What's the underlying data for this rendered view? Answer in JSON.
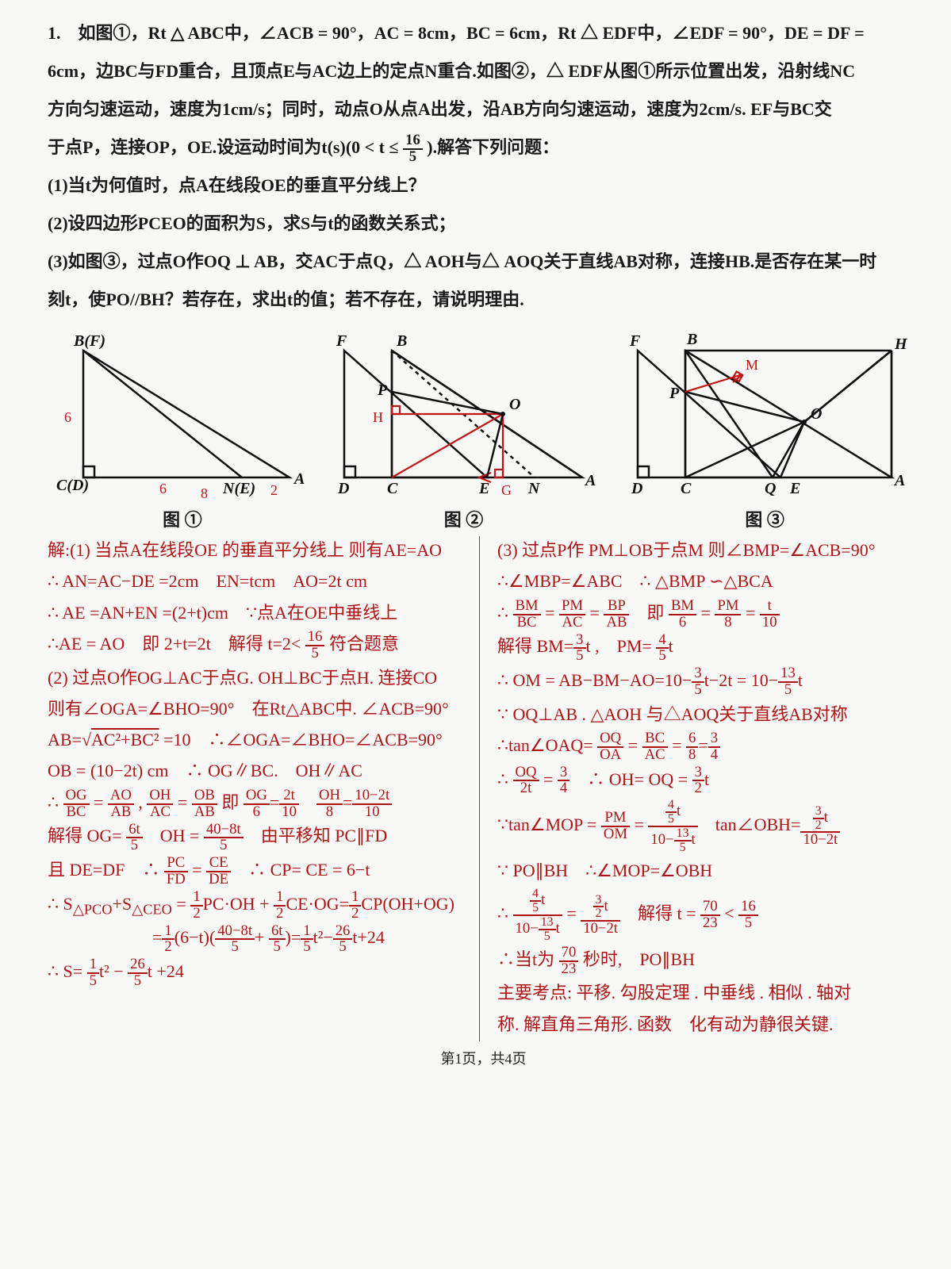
{
  "problem": {
    "line1": "1.　如图①，Rt △ ABC中，∠ACB = 90°，AC = 8cm，BC = 6cm，Rt △ EDF中，∠EDF = 90°，DE = DF =",
    "line2": "6cm，边BC与FD重合，且顶点E与AC边上的定点N重合.如图②，△ EDF从图①所示位置出发，沿射线NC",
    "line3_a": "方向匀速运动，速度为1cm/s；同时，动点O从点A出发，沿AB方向匀速运动，速度为2cm/s. EF与BC交",
    "line3_b": "于点P，连接OP，OE.设运动时间为t(s)(0 < t ≤ ",
    "line3_frac_n": "16",
    "line3_frac_d": "5",
    "line3_c": ").解答下列问题：",
    "q1": "(1)当t为何值时，点A在线段OE的垂直平分线上？",
    "q2": "(2)设四边形PCEO的面积为S，求S与t的函数关系式；",
    "q3": "(3)如图③，过点O作OQ ⊥ AB，交AC于点Q，△ AOH与△ AOQ关于直线AB对称，连接HB.是否存在某一时",
    "q3b": "刻t，使PO//BH？若存在，求出t的值；若不存在，请说明理由."
  },
  "fig_labels": {
    "f1": "图 ①",
    "f2": "图 ②",
    "f3": "图 ③"
  },
  "fig1": {
    "B": "B(F)",
    "C": "C(D)",
    "N": "N(E)",
    "A": "A",
    "len6v": "6",
    "len6h": "6",
    "len8": "8",
    "len2": "2"
  },
  "fig2": {
    "F": "F",
    "B": "B",
    "P": "P",
    "H": "H",
    "O": "O",
    "D": "D",
    "C": "C",
    "E": "E",
    "G": "G",
    "N": "N",
    "A": "A"
  },
  "fig3": {
    "F": "F",
    "B": "B",
    "M": "M",
    "H": "H",
    "P": "P",
    "O": "O",
    "D": "D",
    "C": "C",
    "Q": "Q",
    "E": "E",
    "A": "A"
  },
  "sol_left": [
    "解:(1) 当点A在线段OE 的垂直平分线上 则有AE=AO",
    "∴ AN=AC−DE =2cm　EN=tcm　AO=2t cm",
    "∴ AE =AN+EN =(2+t)cm　∵点A在OE中垂线上",
    "∴AE = AO　即 2+t=2t　解得 t=2< <span class='frac'><span class='n'>16</span><span class='d'>5</span></span> 符合题意",
    "(2) 过点O作OG⊥AC于点G. OH⊥BC于点H. 连接CO",
    "则有∠OGA=∠BHO=90°　在Rt△ABC中. ∠ACB=90°",
    "AB=√<span style='text-decoration:overline'>AC²+BC²</span> =10　∴∠OGA=∠BHO=∠ACB=90°",
    "OB = (10−2t) cm　∴ OG∥BC.　OH∥AC",
    "∴ <span class='frac'><span class='n'>OG</span><span class='d'>BC</span></span> = <span class='frac'><span class='n'>AO</span><span class='d'>AB</span></span> , <span class='frac'><span class='n'>OH</span><span class='d'>AC</span></span> = <span class='frac'><span class='n'>OB</span><span class='d'>AB</span></span> 即 <span class='frac'><span class='n'>OG</span><span class='d'>6</span></span>=<span class='frac'><span class='n'>2t</span><span class='d'>10</span></span>　<span class='frac'><span class='n'>OH</span><span class='d'>8</span></span>=<span class='frac'><span class='n'>10−2t</span><span class='d'>10</span></span>",
    "解得 OG= <span class='frac'><span class='n'>6t</span><span class='d'>5</span></span>　OH = <span class='frac'><span class='n'>40−8t</span><span class='d'>5</span></span>　由平移知 PC∥FD",
    "且 DE=DF　∴ <span class='frac'><span class='n'>PC</span><span class='d'>FD</span></span> = <span class='frac'><span class='n'>CE</span><span class='d'>DE</span></span>　∴ CP= CE = 6−t",
    "∴ S<sub>△PCO</sub>+S<sub>△CEO</sub> = <span class='frac'><span class='n'>1</span><span class='d'>2</span></span>PC·OH + <span class='frac'><span class='n'>1</span><span class='d'>2</span></span>CE·OG=<span class='frac'><span class='n'>1</span><span class='d'>2</span></span>CP(OH+OG)",
    "　　　　　　=<span class='frac'><span class='n'>1</span><span class='d'>2</span></span>(6−t)(<span class='frac'><span class='n'>40−8t</span><span class='d'>5</span></span>+ <span class='frac'><span class='n'>6t</span><span class='d'>5</span></span>)=<span class='frac'><span class='n'>1</span><span class='d'>5</span></span>t²−<span class='frac'><span class='n'>26</span><span class='d'>5</span></span>t+24",
    "∴ S= <span class='frac'><span class='n'>1</span><span class='d'>5</span></span>t² − <span class='frac'><span class='n'>26</span><span class='d'>5</span></span>t +24"
  ],
  "sol_right": [
    "(3) 过点P作 PM⊥OB于点M 则∠BMP=∠ACB=90°",
    "∴∠MBP=∠ABC　∴ △BMP ∽△BCA",
    "∴ <span class='frac'><span class='n'>BM</span><span class='d'>BC</span></span> = <span class='frac'><span class='n'>PM</span><span class='d'>AC</span></span> = <span class='frac'><span class='n'>BP</span><span class='d'>AB</span></span>　即 <span class='frac'><span class='n'>BM</span><span class='d'>6</span></span> = <span class='frac'><span class='n'>PM</span><span class='d'>8</span></span> = <span class='frac'><span class='n'>t</span><span class='d'>10</span></span>",
    "解得 BM=<span class='frac'><span class='n'>3</span><span class='d'>5</span></span>t ,　PM= <span class='frac'><span class='n'>4</span><span class='d'>5</span></span>t",
    "∴ OM = AB−BM−AO=10−<span class='frac'><span class='n'>3</span><span class='d'>5</span></span>t−2t = 10−<span class='frac'><span class='n'>13</span><span class='d'>5</span></span>t",
    "∵ OQ⊥AB . △AOH 与△AOQ关于直线AB对称",
    "∴tan∠OAQ= <span class='frac'><span class='n'>OQ</span><span class='d'>OA</span></span> = <span class='frac'><span class='n'>BC</span><span class='d'>AC</span></span> = <span class='frac'><span class='n'>6</span><span class='d'>8</span></span>=<span class='frac'><span class='n'>3</span><span class='d'>4</span></span>",
    "∴ <span class='frac'><span class='n'>OQ</span><span class='d'>2t</span></span> = <span class='frac'><span class='n'>3</span><span class='d'>4</span></span>　∴ OH= OQ = <span class='frac'><span class='n'>3</span><span class='d'>2</span></span>t",
    "∵tan∠MOP = <span class='frac'><span class='n'>PM</span><span class='d'>OM</span></span> = <span class='frac'><span class='n'><span class='frac'><span class='n'>4</span><span class='d'>5</span></span>t</span><span class='d'>10−<span class='frac'><span class='n'>13</span><span class='d'>5</span></span>t</span></span>　tan∠OBH=<span class='frac'><span class='n'><span class='frac'><span class='n'>3</span><span class='d'>2</span></span>t</span><span class='d'>10−2t</span></span>",
    "∵ PO∥BH　∴∠MOP=∠OBH",
    "∴ <span class='frac'><span class='n'><span class='frac'><span class='n'>4</span><span class='d'>5</span></span>t</span><span class='d'>10−<span class='frac'><span class='n'>13</span><span class='d'>5</span></span>t</span></span> = <span class='frac'><span class='n'><span class='frac'><span class='n'>3</span><span class='d'>2</span></span>t</span><span class='d'>10−2t</span></span>　解得 t = <span class='frac'><span class='n'>70</span><span class='d'>23</span></span> < <span class='frac'><span class='n'>16</span><span class='d'>5</span></span>",
    "∴当t为 <span class='frac'><span class='n'>70</span><span class='d'>23</span></span> 秒时,　PO∥BH",
    "主要考点: 平移. 勾股定理 . 中垂线 . 相似 . 轴对",
    "称. 解直角三角形. 函数　化有动为静很关键."
  ],
  "footer": "第1页，共4页",
  "colors": {
    "ink": "#1a1a1a",
    "red": "#c01515",
    "bg": "#f8f8f6"
  }
}
